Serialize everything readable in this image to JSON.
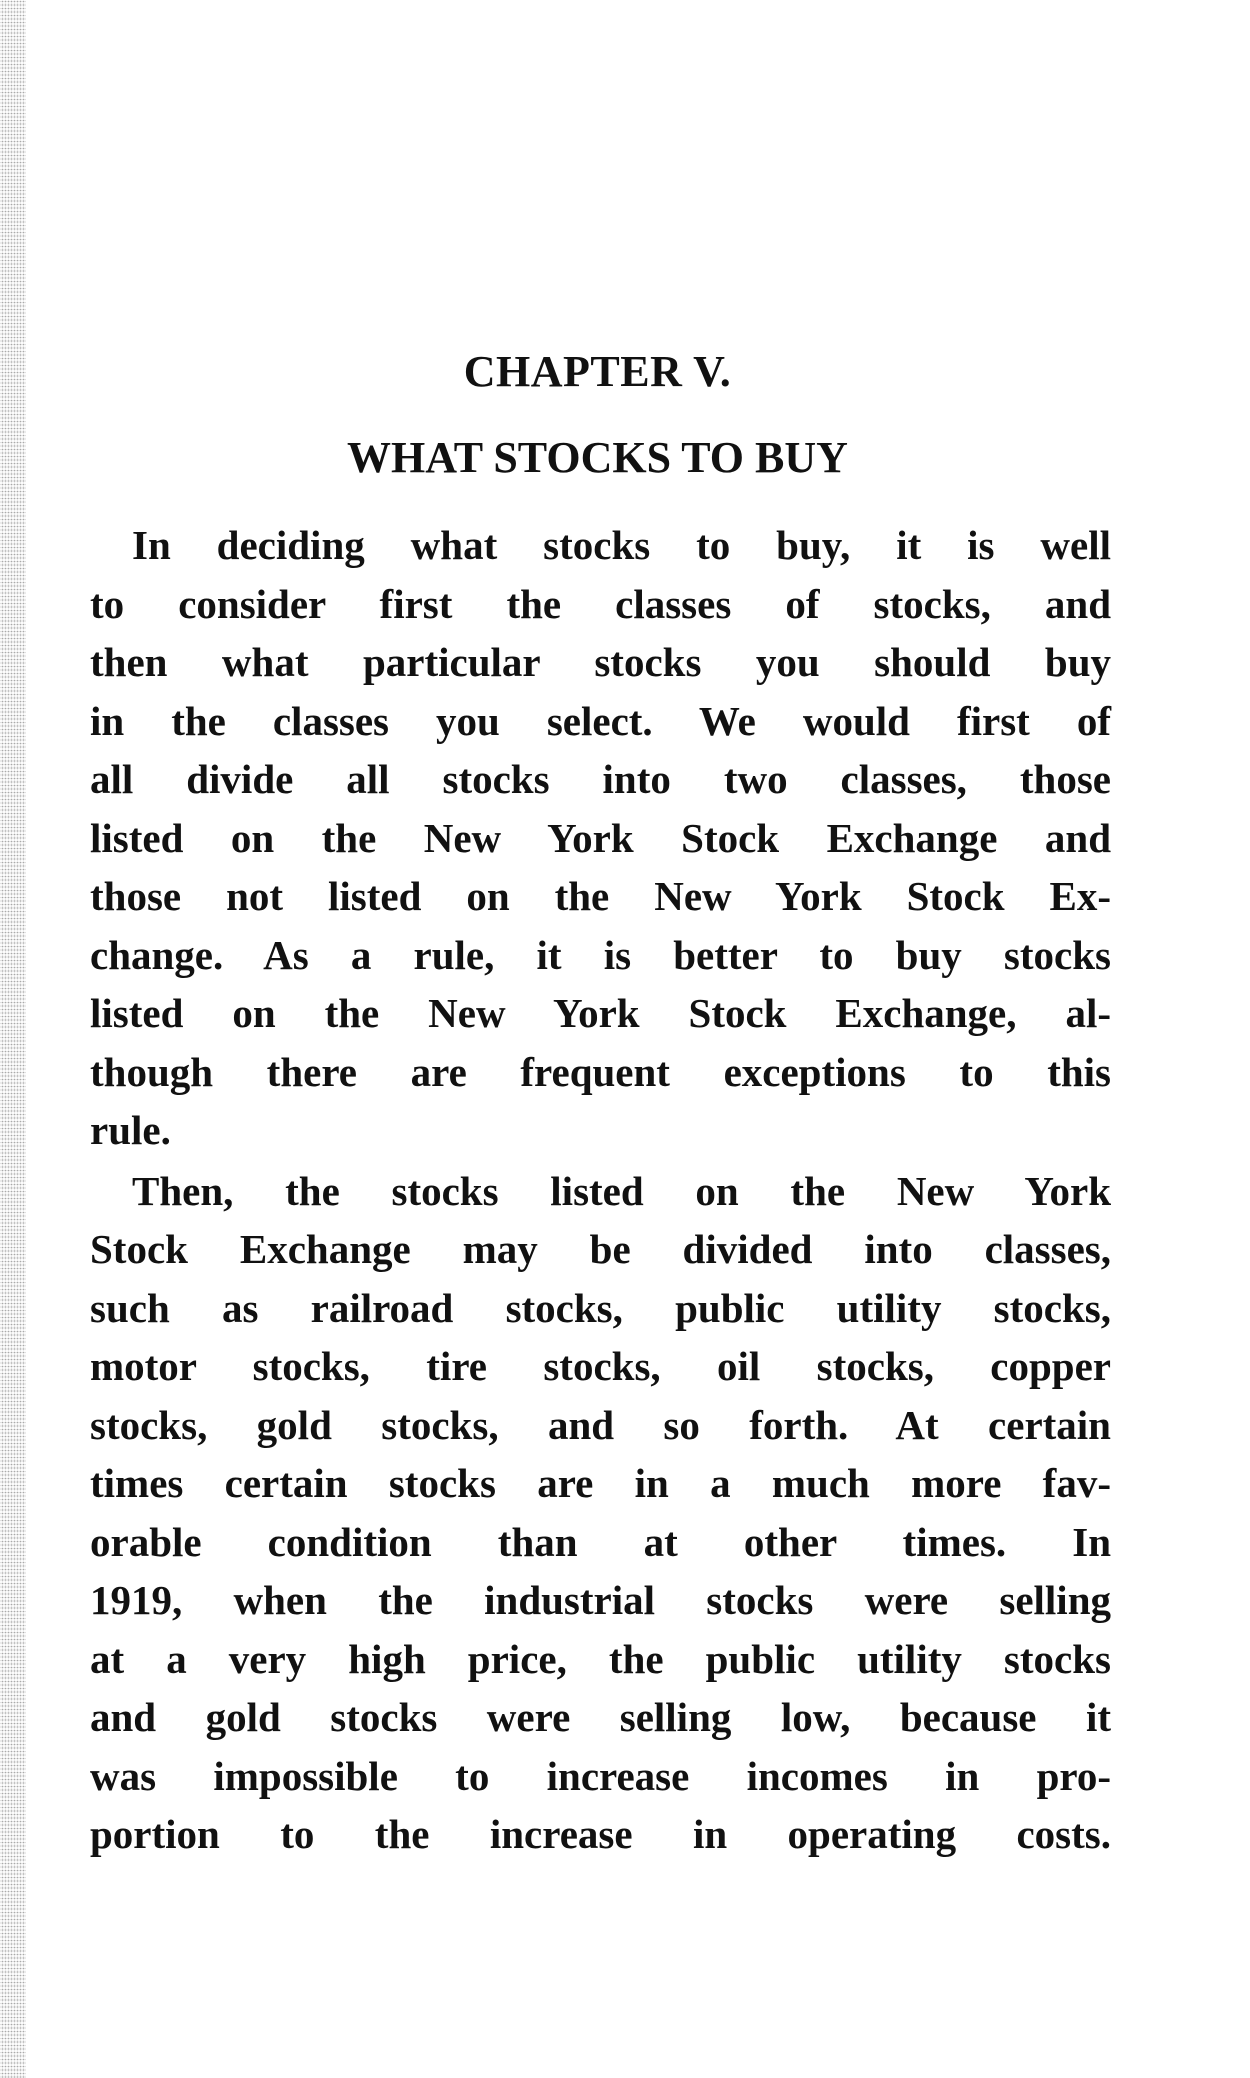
{
  "chapter": "CHAPTER V.",
  "title": "WHAT STOCKS TO BUY",
  "paragraphs": [
    {
      "lines": [
        "In deciding what stocks to buy, it is well",
        "to consider first the classes of stocks, and",
        "then what particular stocks you should buy",
        "in the classes you select.  We would first of",
        "all divide all stocks into two classes, those",
        "listed on the New York Stock Exchange and",
        "those not listed on the New York Stock Ex-",
        "change.  As a rule, it is better to buy stocks",
        "listed on the New York Stock Exchange, al-",
        "though there are frequent exceptions to this",
        "rule."
      ]
    },
    {
      "lines": [
        "Then, the stocks listed on the New York",
        "Stock Exchange may be divided into classes,",
        "such as railroad stocks, public utility stocks,",
        "motor stocks, tire stocks, oil stocks, copper",
        "stocks, gold stocks, and so forth.  At certain",
        "times certain stocks are in a much more fav-",
        "orable condition than at other times.  In",
        "1919, when the industrial stocks were selling",
        "at a very high price, the public utility stocks",
        "and gold stocks were selling low, because it",
        "was impossible to increase incomes in pro-",
        "portion to the increase in operating costs."
      ]
    }
  ]
}
